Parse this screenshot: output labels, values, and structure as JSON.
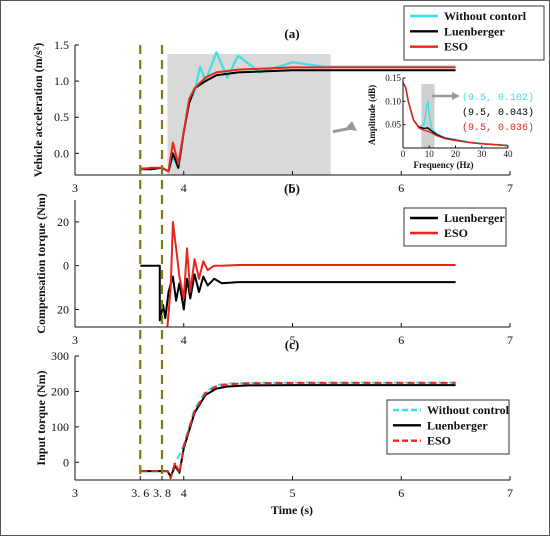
{
  "chart_data": [
    {
      "panel": "(a)",
      "type": "line",
      "ylabel": "Vehicle acceleration (m/s²)",
      "xlabel": "",
      "xlim": [
        3,
        7
      ],
      "ylim": [
        -0.3,
        1.5
      ],
      "xticks": [
        "3",
        "4",
        "5",
        "6",
        "7"
      ],
      "yticks": [
        "0.0",
        "0.5",
        "1.0",
        "1.5"
      ],
      "legend": {
        "placement": "top-right",
        "entries": [
          "Without contorl",
          "Luenberger",
          "ESO"
        ]
      },
      "highlight_region": {
        "x": [
          3.85,
          5.35
        ],
        "color": "#d9d9d9"
      },
      "series": [
        {
          "name": "Without contorl",
          "color": "#3ee0e6",
          "x": [
            3.0,
            3.6,
            3.62,
            3.7,
            3.8,
            3.86,
            3.9,
            3.95,
            4.0,
            4.05,
            4.1,
            4.15,
            4.2,
            4.3,
            4.4,
            4.5,
            4.7,
            5.0,
            5.3,
            5.6,
            6.0,
            6.5
          ],
          "y": [
            null,
            -0.2,
            -0.2,
            -0.22,
            -0.2,
            -0.25,
            -0.05,
            -0.2,
            0.3,
            0.7,
            0.85,
            1.2,
            1.0,
            1.4,
            1.05,
            1.35,
            1.12,
            1.26,
            1.2,
            1.2,
            1.2,
            1.2
          ]
        },
        {
          "name": "Luenberger",
          "color": "#000000",
          "x": [
            3.6,
            3.7,
            3.8,
            3.86,
            3.9,
            3.95,
            4.0,
            4.05,
            4.1,
            4.2,
            4.3,
            4.5,
            5.0,
            6.0,
            6.5
          ],
          "y": [
            -0.22,
            -0.22,
            -0.2,
            -0.25,
            0.0,
            -0.2,
            0.3,
            0.7,
            0.9,
            1.0,
            1.08,
            1.12,
            1.15,
            1.15,
            1.15
          ]
        },
        {
          "name": "ESO",
          "color": "#e8261e",
          "x": [
            3.6,
            3.7,
            3.8,
            3.86,
            3.9,
            3.95,
            4.0,
            4.05,
            4.1,
            4.2,
            4.3,
            4.5,
            5.0,
            6.0,
            6.5
          ],
          "y": [
            -0.22,
            -0.2,
            -0.2,
            -0.25,
            0.15,
            -0.15,
            0.3,
            0.75,
            0.9,
            1.05,
            1.12,
            1.16,
            1.19,
            1.19,
            1.19
          ]
        }
      ],
      "inset": {
        "type": "line",
        "xlabel": "Frequency (Hz)",
        "ylabel": "Amplitude (dB)",
        "xlim": [
          0,
          40
        ],
        "ylim": [
          0,
          0.15
        ],
        "xticks": [
          "0",
          "10",
          "20",
          "30",
          "40"
        ],
        "yticks": [
          "0.05",
          "0.10",
          "0.15"
        ],
        "highlight_region": {
          "x": [
            7,
            12
          ]
        },
        "series": [
          {
            "name": "Without contorl",
            "color": "#3ee0e6",
            "x": [
              0,
              1,
              2,
              4,
              6,
              8,
              9,
              9.5,
              10,
              11,
              13,
              16,
              20,
              25,
              30,
              35,
              40
            ],
            "y": [
              0.14,
              0.13,
              0.1,
              0.06,
              0.045,
              0.05,
              0.09,
              0.102,
              0.07,
              0.04,
              0.03,
              0.022,
              0.018,
              0.013,
              0.01,
              0.008,
              0.006
            ]
          },
          {
            "name": "Luenberger",
            "color": "#000000",
            "x": [
              0,
              1,
              2,
              4,
              6,
              8,
              9.5,
              11,
              13,
              16,
              20,
              25,
              30,
              35,
              40
            ],
            "y": [
              0.14,
              0.13,
              0.1,
              0.06,
              0.045,
              0.042,
              0.043,
              0.036,
              0.028,
              0.021,
              0.017,
              0.012,
              0.009,
              0.007,
              0.005
            ]
          },
          {
            "name": "ESO",
            "color": "#e8261e",
            "x": [
              0,
              1,
              2,
              4,
              6,
              8,
              9.5,
              11,
              13,
              16,
              20,
              25,
              30,
              35,
              40
            ],
            "y": [
              0.14,
              0.13,
              0.1,
              0.06,
              0.043,
              0.038,
              0.036,
              0.032,
              0.026,
              0.02,
              0.016,
              0.012,
              0.009,
              0.007,
              0.005
            ]
          }
        ],
        "annotations": [
          {
            "text": "(9.5, 0.102)",
            "color": "#3ee0e6"
          },
          {
            "text": "(9.5, 0.043)",
            "color": "#000000"
          },
          {
            "text": "(9.5, 0.036)",
            "color": "#e8261e"
          }
        ]
      }
    },
    {
      "panel": "(b)",
      "type": "line",
      "ylabel": "Compensation torque (Nm)",
      "xlabel": "",
      "xlim": [
        3,
        7
      ],
      "ylim": [
        -28,
        30
      ],
      "xticks": [
        "3",
        "4",
        "5",
        "6",
        "7"
      ],
      "yticks": [
        "20",
        "0",
        "20"
      ],
      "yticks_values": [
        20,
        0,
        -20
      ],
      "legend": {
        "placement": "top-right",
        "entries": [
          "Luenberger",
          "ESO"
        ]
      },
      "series": [
        {
          "name": "Luenberger",
          "color": "#000000",
          "x": [
            3.6,
            3.78,
            3.78,
            3.81,
            3.83,
            3.86,
            3.9,
            3.93,
            3.96,
            4.0,
            4.03,
            4.06,
            4.1,
            4.14,
            4.18,
            4.22,
            4.28,
            4.35,
            4.5,
            5.0,
            6.0,
            6.5
          ],
          "y": [
            0,
            0,
            -25,
            -18,
            -24,
            -12,
            -5,
            -16,
            -8,
            -20,
            -6,
            -15,
            -4,
            -12,
            -5,
            -9,
            -6,
            -8,
            -7.5,
            -7.5,
            -7.5,
            -7.5
          ]
        },
        {
          "name": "ESO",
          "color": "#e8261e",
          "x": [
            3.85,
            3.88,
            3.9,
            3.93,
            3.96,
            4.0,
            4.03,
            4.06,
            4.1,
            4.14,
            4.18,
            4.22,
            4.28,
            4.35,
            4.5,
            5.0,
            6.0,
            6.5
          ],
          "y": [
            -28,
            -10,
            20,
            8,
            -5,
            -15,
            8,
            -12,
            3,
            -6,
            2,
            -2,
            0,
            0,
            0.3,
            0.3,
            0.3,
            0.3
          ]
        }
      ]
    },
    {
      "panel": "(c)",
      "type": "line",
      "ylabel": "Input torque (Nm)",
      "xlabel": "Time (s)",
      "xlim": [
        3,
        7
      ],
      "ylim": [
        -50,
        300
      ],
      "xticks": [
        "3",
        "3. 6",
        "3. 8",
        "4",
        "5",
        "6",
        "7"
      ],
      "xticks_values": [
        3,
        3.6,
        3.8,
        4,
        5,
        6,
        7
      ],
      "yticks": [
        "0",
        "100",
        "200",
        "300"
      ],
      "legend": {
        "placement": "right",
        "entries": [
          "Without control",
          "Luenberger",
          "ESO"
        ]
      },
      "series": [
        {
          "name": "Without control",
          "color": "#3ee0e6",
          "dashed": true,
          "x": [
            3.6,
            3.85,
            3.9,
            4.0,
            4.1,
            4.2,
            4.3,
            4.4,
            4.6,
            5.0,
            6.0,
            6.5
          ],
          "y": [
            -25,
            -25,
            -20,
            50,
            150,
            200,
            218,
            222,
            224,
            225,
            225,
            225
          ]
        },
        {
          "name": "Luenberger",
          "color": "#000000",
          "x": [
            3.6,
            3.85,
            3.88,
            3.92,
            3.96,
            4.0,
            4.1,
            4.2,
            4.3,
            4.4,
            4.6,
            5.0,
            6.0,
            6.5
          ],
          "y": [
            -25,
            -25,
            -40,
            -10,
            -30,
            40,
            140,
            190,
            208,
            214,
            217,
            218,
            218,
            218
          ]
        },
        {
          "name": "ESO",
          "color": "#e8261e",
          "dashed": true,
          "x": [
            3.6,
            3.85,
            3.88,
            3.92,
            3.96,
            4.0,
            4.1,
            4.2,
            4.3,
            4.4,
            4.6,
            5.0,
            6.0,
            6.5
          ],
          "y": [
            -25,
            -25,
            -45,
            0,
            -30,
            45,
            145,
            195,
            215,
            220,
            223,
            224,
            224,
            224
          ]
        }
      ],
      "markers": [
        3.6,
        3.8
      ]
    }
  ]
}
